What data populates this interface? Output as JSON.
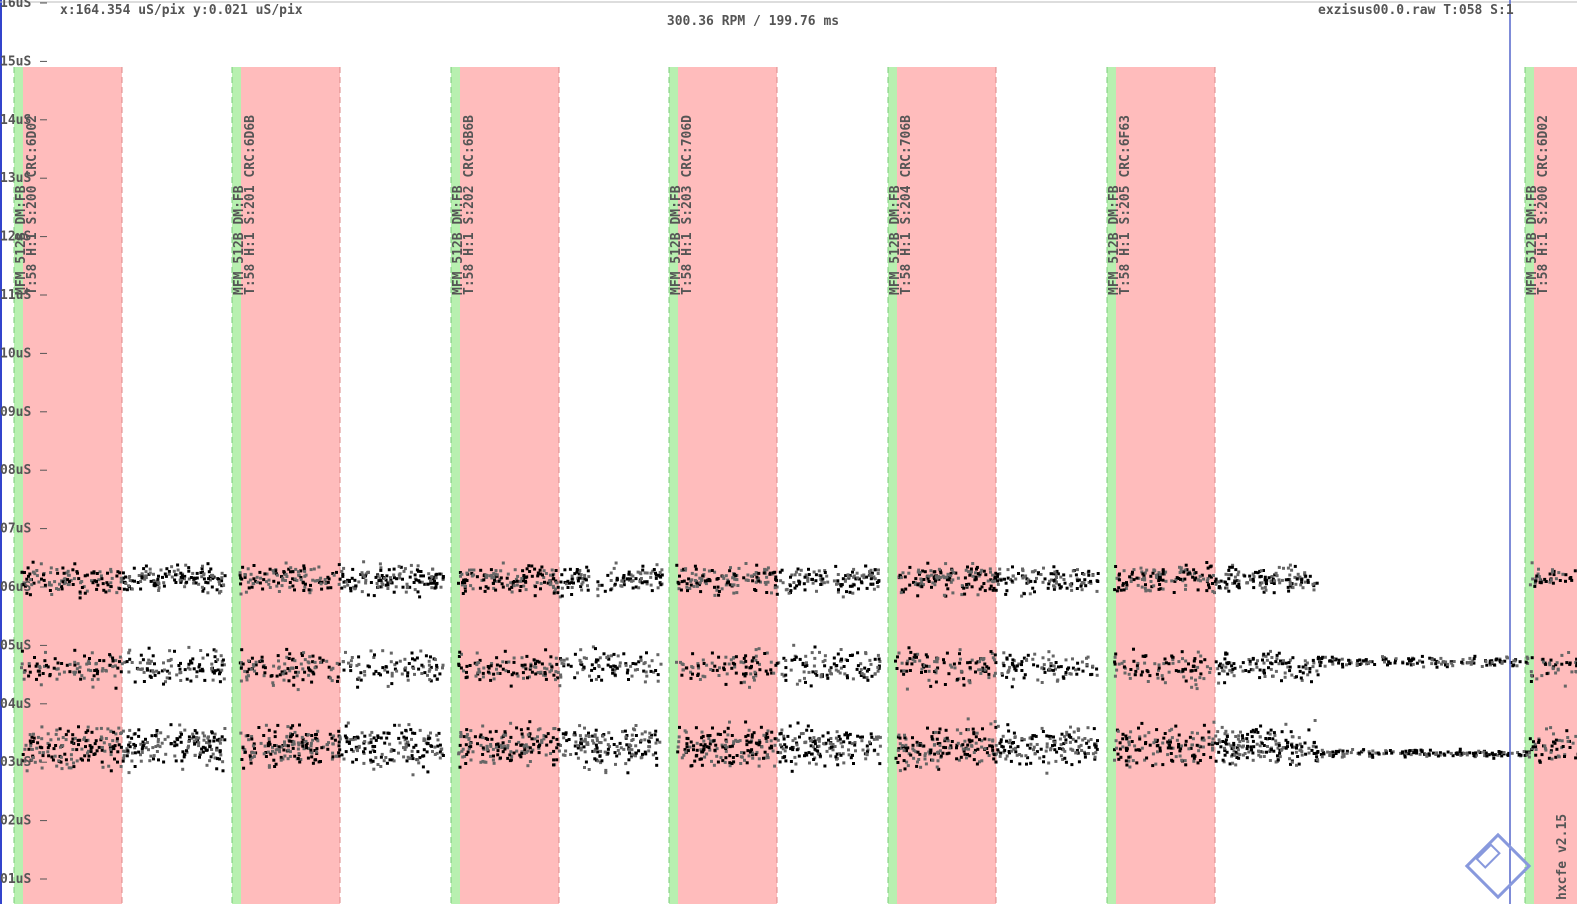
{
  "header": {
    "scale": "x:164.354 uS/pix y:0.021 uS/pix",
    "rpm": "300.36 RPM / 199.76 ms",
    "file": "exzisus00.0.raw T:058 S:1"
  },
  "y_axis": {
    "labels": [
      "16uS",
      "15uS",
      "14uS",
      "13uS",
      "12uS",
      "11uS",
      "10uS",
      "09uS",
      "08uS",
      "07uS",
      "06uS",
      "05uS",
      "04uS",
      "03uS",
      "02uS",
      "01uS"
    ]
  },
  "sectors": [
    {
      "format": "MFM 512B DM:FB",
      "info": "T:58 H:1 S:200 CRC:6D02"
    },
    {
      "format": "MFM 512B DM:FB",
      "info": "T:58 H:1 S:201 CRC:6D6B"
    },
    {
      "format": "MFM 512B DM:FB",
      "info": "T:58 H:1 S:202 CRC:6B6B"
    },
    {
      "format": "MFM 512B DM:FB",
      "info": "T:58 H:1 S:203 CRC:706D"
    },
    {
      "format": "MFM 512B DM:FB",
      "info": "T:58 H:1 S:204 CRC:706B"
    },
    {
      "format": "MFM 512B DM:FB",
      "info": "T:58 H:1 S:205 CRC:6F63"
    },
    {
      "format": "MFM 512B DM:FB",
      "info": "T:58 H:1 S:200 CRC:6D02"
    }
  ],
  "watermark": "hxcfe v2.15"
}
